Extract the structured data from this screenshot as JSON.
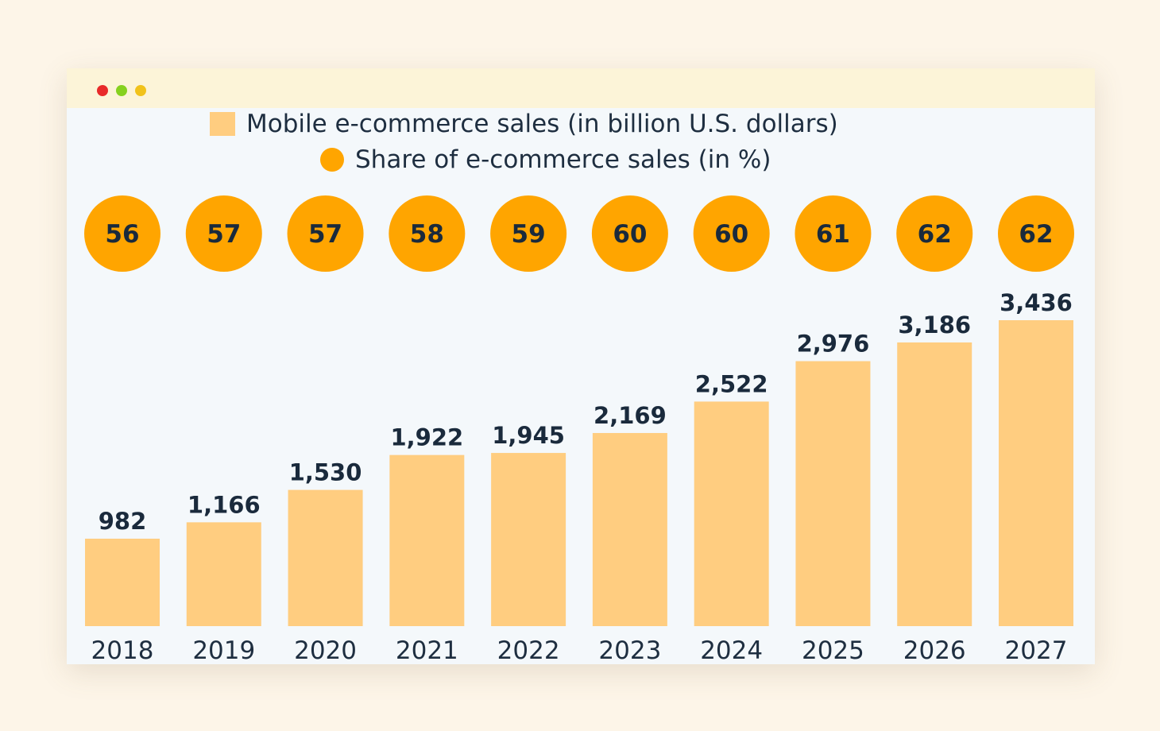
{
  "window": {
    "dots": [
      {
        "name": "close-dot",
        "color": "#e82a2a"
      },
      {
        "name": "minimize-dot",
        "color": "#86d11e"
      },
      {
        "name": "maximize-dot",
        "color": "#f1c21b"
      }
    ]
  },
  "colors": {
    "bar": "#ffcd80",
    "circle": "#ffa500",
    "text": "#1a2a3c"
  },
  "chart_data": {
    "type": "bar",
    "categories": [
      "2018",
      "2019",
      "2020",
      "2021",
      "2022",
      "2023",
      "2024",
      "2025",
      "2026",
      "2027"
    ],
    "series": [
      {
        "name": "Mobile e-commerce sales (in billion U.S. dollars)",
        "values": [
          982,
          1166,
          1530,
          1922,
          1945,
          2169,
          2522,
          2976,
          3186,
          3436
        ],
        "labels": [
          "982",
          "1,166",
          "1,530",
          "1,922",
          "1,945",
          "2,169",
          "2,522",
          "2,976",
          "3,186",
          "3,436"
        ]
      },
      {
        "name": "Share of e-commerce sales (in %)",
        "values": [
          56,
          57,
          57,
          58,
          59,
          60,
          60,
          61,
          62,
          62
        ]
      }
    ],
    "ylim": [
      0,
      3436
    ],
    "grid": false,
    "legend": "top-center"
  }
}
